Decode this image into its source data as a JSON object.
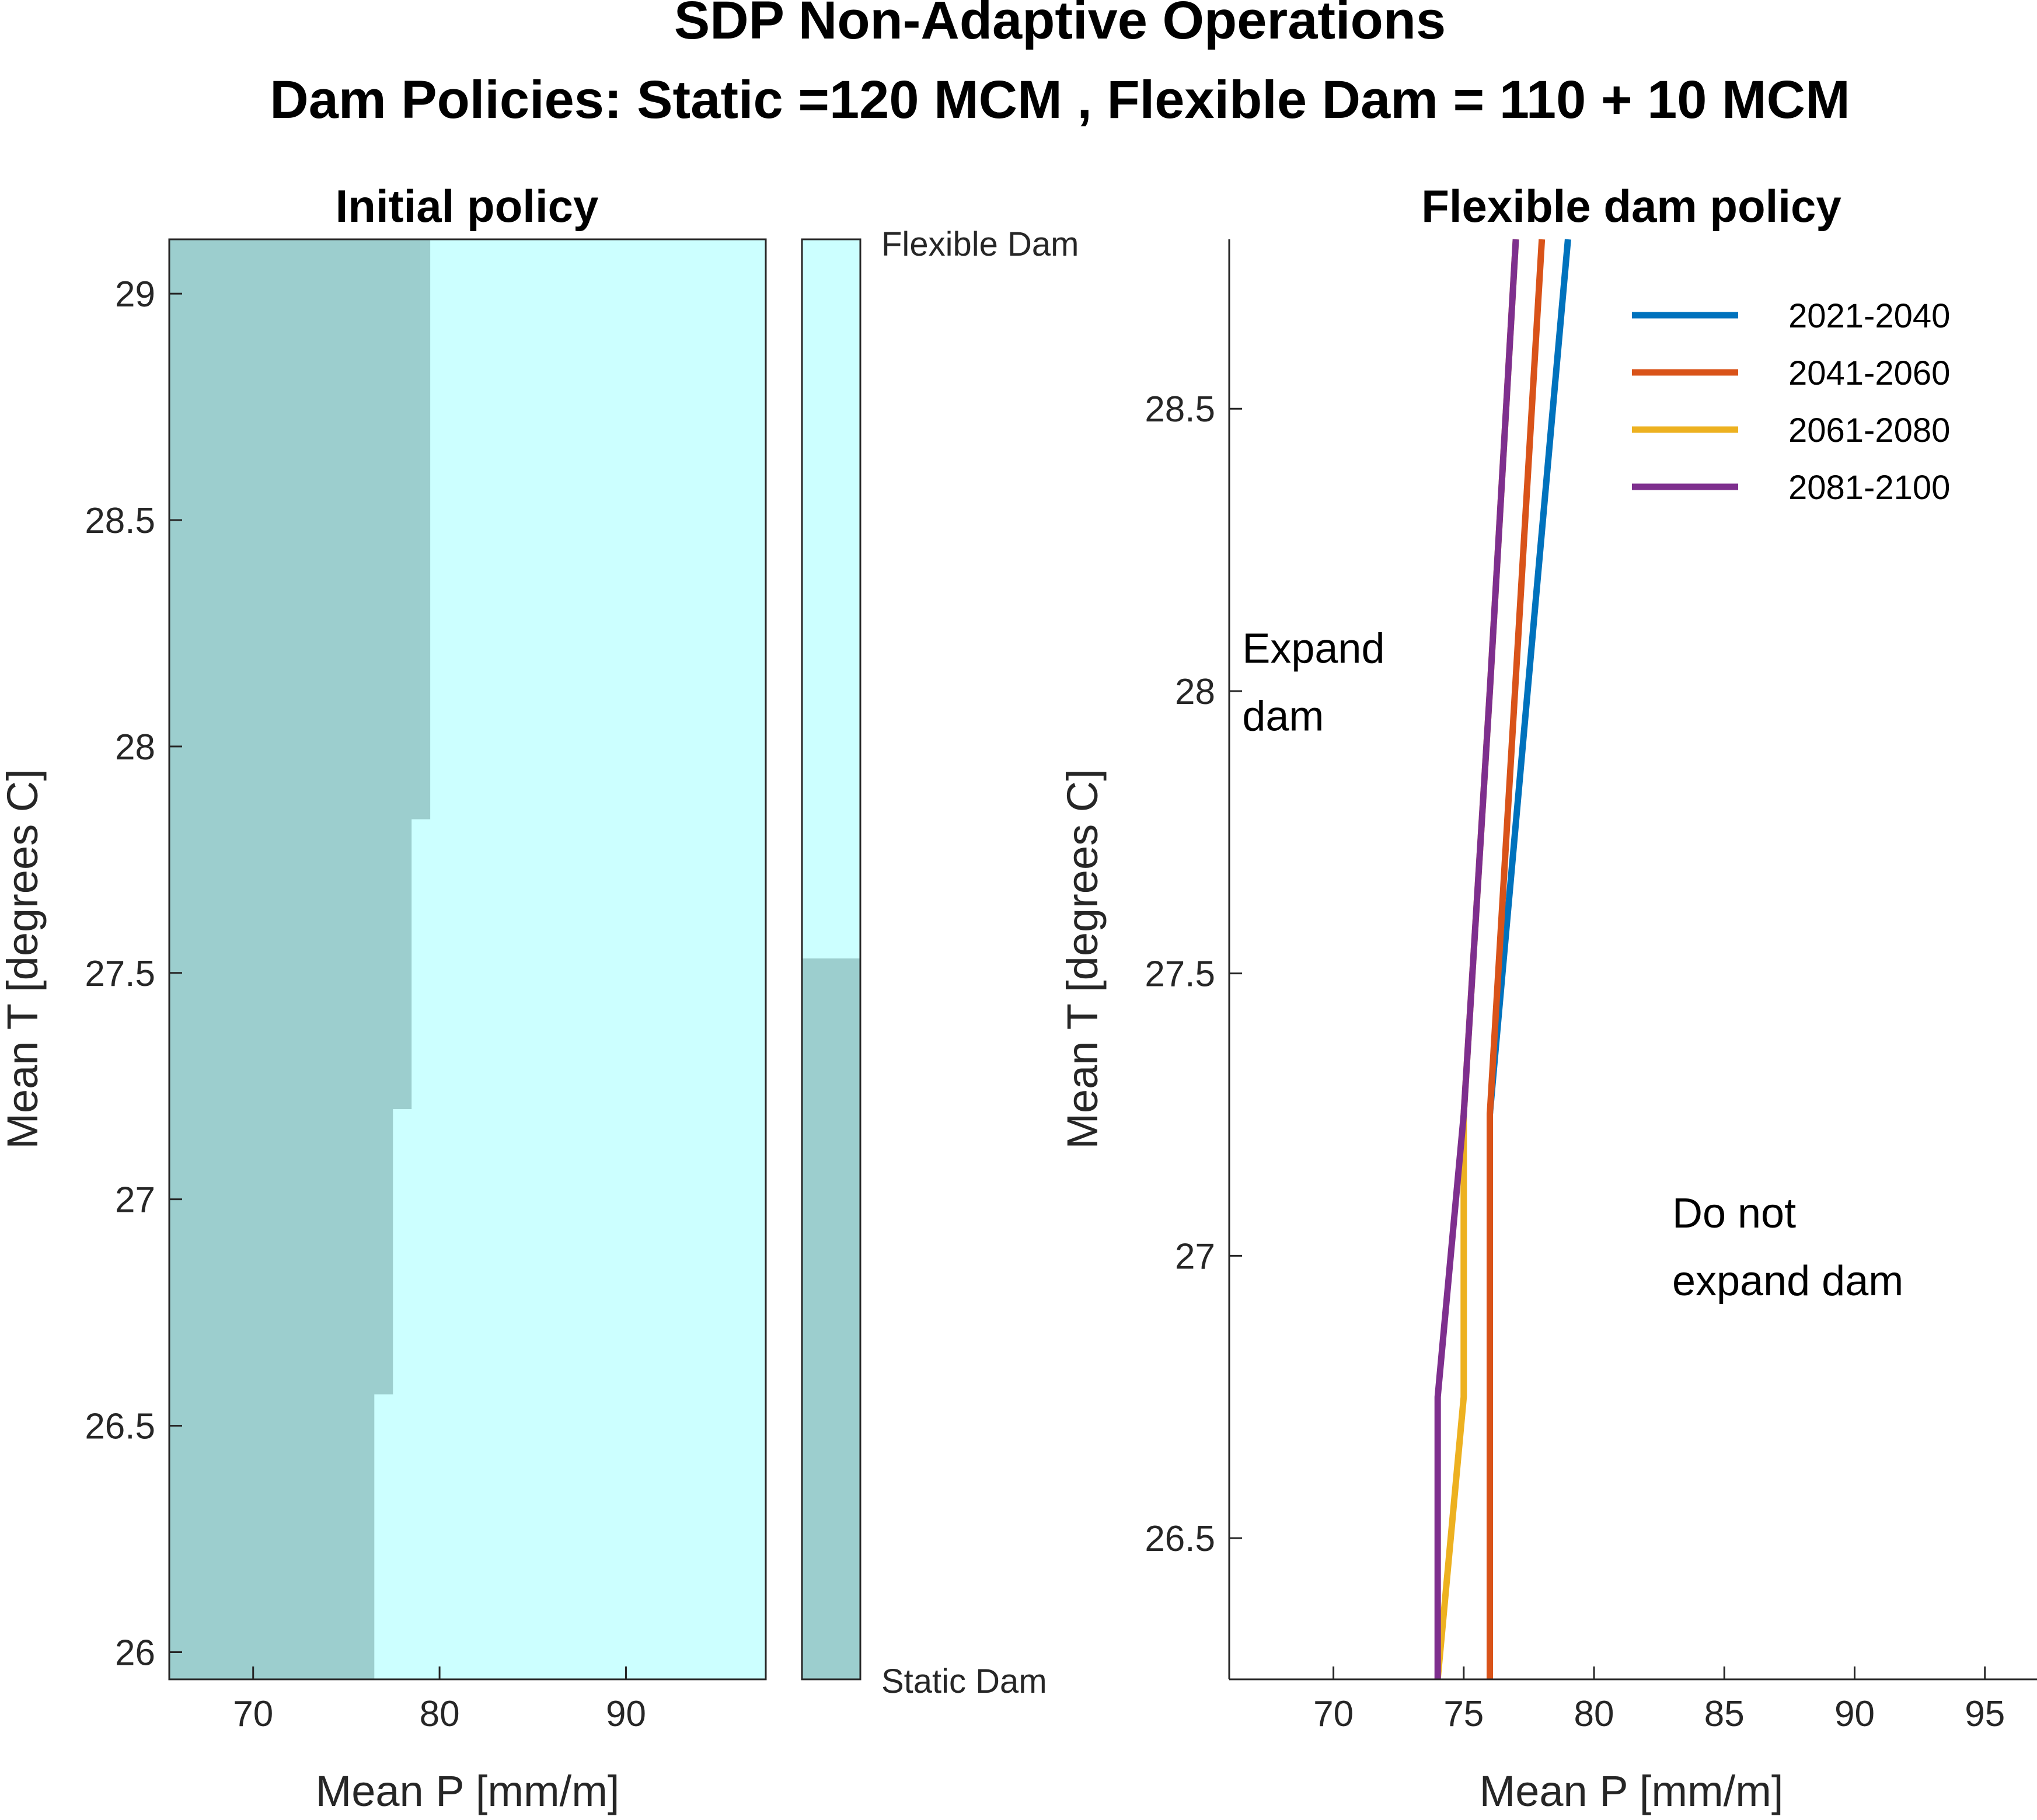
{
  "figure": {
    "title_line1": "SDP Non-Adaptive Operations",
    "title_line2": "Dam Policies: Static =120 MCM , Flexible Dam = 110 + 10 MCM"
  },
  "colors": {
    "static": "#9ccece",
    "flexible": "#ccffff",
    "axis": "#262626",
    "series": [
      "#0072bd",
      "#d95319",
      "#edb120",
      "#7e2f8e"
    ]
  },
  "chart_data": [
    {
      "type": "heatmap",
      "title": "Initial policy",
      "xlabel": "Mean P [mm/m]",
      "ylabel": "Mean T [degrees C]",
      "xlim": [
        65.5,
        97.5
      ],
      "ylim": [
        25.94,
        29.12
      ],
      "xticks": [
        70,
        80,
        90
      ],
      "yticks": [
        26,
        26.5,
        27,
        27.5,
        28,
        28.5,
        29
      ],
      "grid": false,
      "classes": [
        "Static Dam",
        "Flexible Dam"
      ],
      "colorbar": {
        "top_label": "Flexible Dam",
        "bottom_label": "Static Dam"
      },
      "boundary_description": "Static Dam for Mean P below the threshold, Flexible Dam above",
      "static_threshold_by_T": [
        {
          "T_from": 25.94,
          "T_to": 26.57,
          "P_threshold": 76.5
        },
        {
          "T_from": 26.57,
          "T_to": 27.2,
          "P_threshold": 77.5
        },
        {
          "T_from": 27.2,
          "T_to": 27.84,
          "P_threshold": 78.5
        },
        {
          "T_from": 27.84,
          "T_to": 29.12,
          "P_threshold": 79.5
        }
      ]
    },
    {
      "type": "line",
      "title": "Flexible dam policy",
      "xlabel": "Mean P [mm/m]",
      "ylabel": "Mean T [degrees C]",
      "xlim": [
        66,
        97
      ],
      "ylim": [
        26.25,
        28.8
      ],
      "xticks": [
        70,
        75,
        80,
        85,
        90,
        95
      ],
      "yticks": [
        26.5,
        27,
        27.5,
        28,
        28.5
      ],
      "grid": false,
      "legend_position": "top-right",
      "annotations": [
        {
          "text": [
            "Expand",
            "dam"
          ],
          "x": 66.5,
          "y": 28.05
        },
        {
          "text": [
            "Do not",
            "expand dam"
          ],
          "x": 83,
          "y": 27.05
        }
      ],
      "series": [
        {
          "name": "2021-2040",
          "points": [
            [
              76,
              26.25
            ],
            [
              76,
              27.25
            ],
            [
              79,
              28.8
            ]
          ]
        },
        {
          "name": "2041-2060",
          "points": [
            [
              76,
              26.25
            ],
            [
              76,
              27.25
            ],
            [
              78,
              28.8
            ]
          ]
        },
        {
          "name": "2061-2080",
          "points": [
            [
              74,
              26.25
            ],
            [
              75,
              26.75
            ],
            [
              75,
              27.25
            ],
            [
              76,
              28.0
            ],
            [
              77,
              28.8
            ]
          ]
        },
        {
          "name": "2081-2100",
          "points": [
            [
              74,
              26.25
            ],
            [
              74,
              26.75
            ],
            [
              75,
              27.25
            ],
            [
              76,
              28.0
            ],
            [
              77,
              28.8
            ]
          ]
        }
      ]
    }
  ]
}
